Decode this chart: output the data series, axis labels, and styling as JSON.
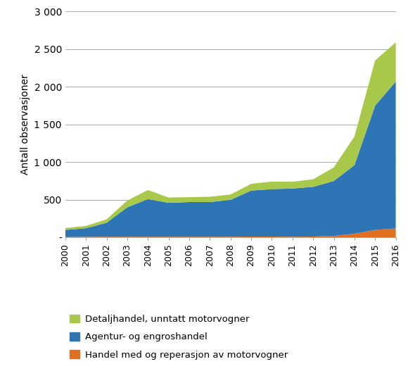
{
  "years": [
    2000,
    2001,
    2002,
    2003,
    2004,
    2005,
    2006,
    2007,
    2008,
    2009,
    2010,
    2011,
    2012,
    2013,
    2014,
    2015,
    2016
  ],
  "agentur": [
    95,
    115,
    185,
    390,
    500,
    450,
    460,
    460,
    490,
    610,
    630,
    640,
    660,
    730,
    910,
    1650,
    1950
  ],
  "detaljhandel": [
    25,
    30,
    45,
    90,
    120,
    70,
    65,
    70,
    70,
    90,
    100,
    90,
    100,
    180,
    380,
    600,
    520
  ],
  "handel_motor": [
    5,
    8,
    10,
    10,
    10,
    10,
    10,
    10,
    10,
    12,
    12,
    10,
    12,
    20,
    50,
    100,
    120
  ],
  "legend_labels": [
    "Detaljhandel, unntatt motorvogner",
    "Agentur- og engroshandel",
    "Handel med og reperasjon av motorvogner"
  ],
  "colors": [
    "#a8c84a",
    "#2e75b6",
    "#e07020"
  ],
  "ylabel": "Antall observasjoner",
  "ylim": [
    0,
    3000
  ],
  "yticks": [
    0,
    500,
    1000,
    1500,
    2000,
    2500,
    3000
  ],
  "ytick_labels": [
    "-",
    "500",
    "1 000",
    "1 500",
    "2 000",
    "2 500",
    "3 000"
  ],
  "background_color": "#ffffff",
  "grid_color": "#aaaaaa"
}
